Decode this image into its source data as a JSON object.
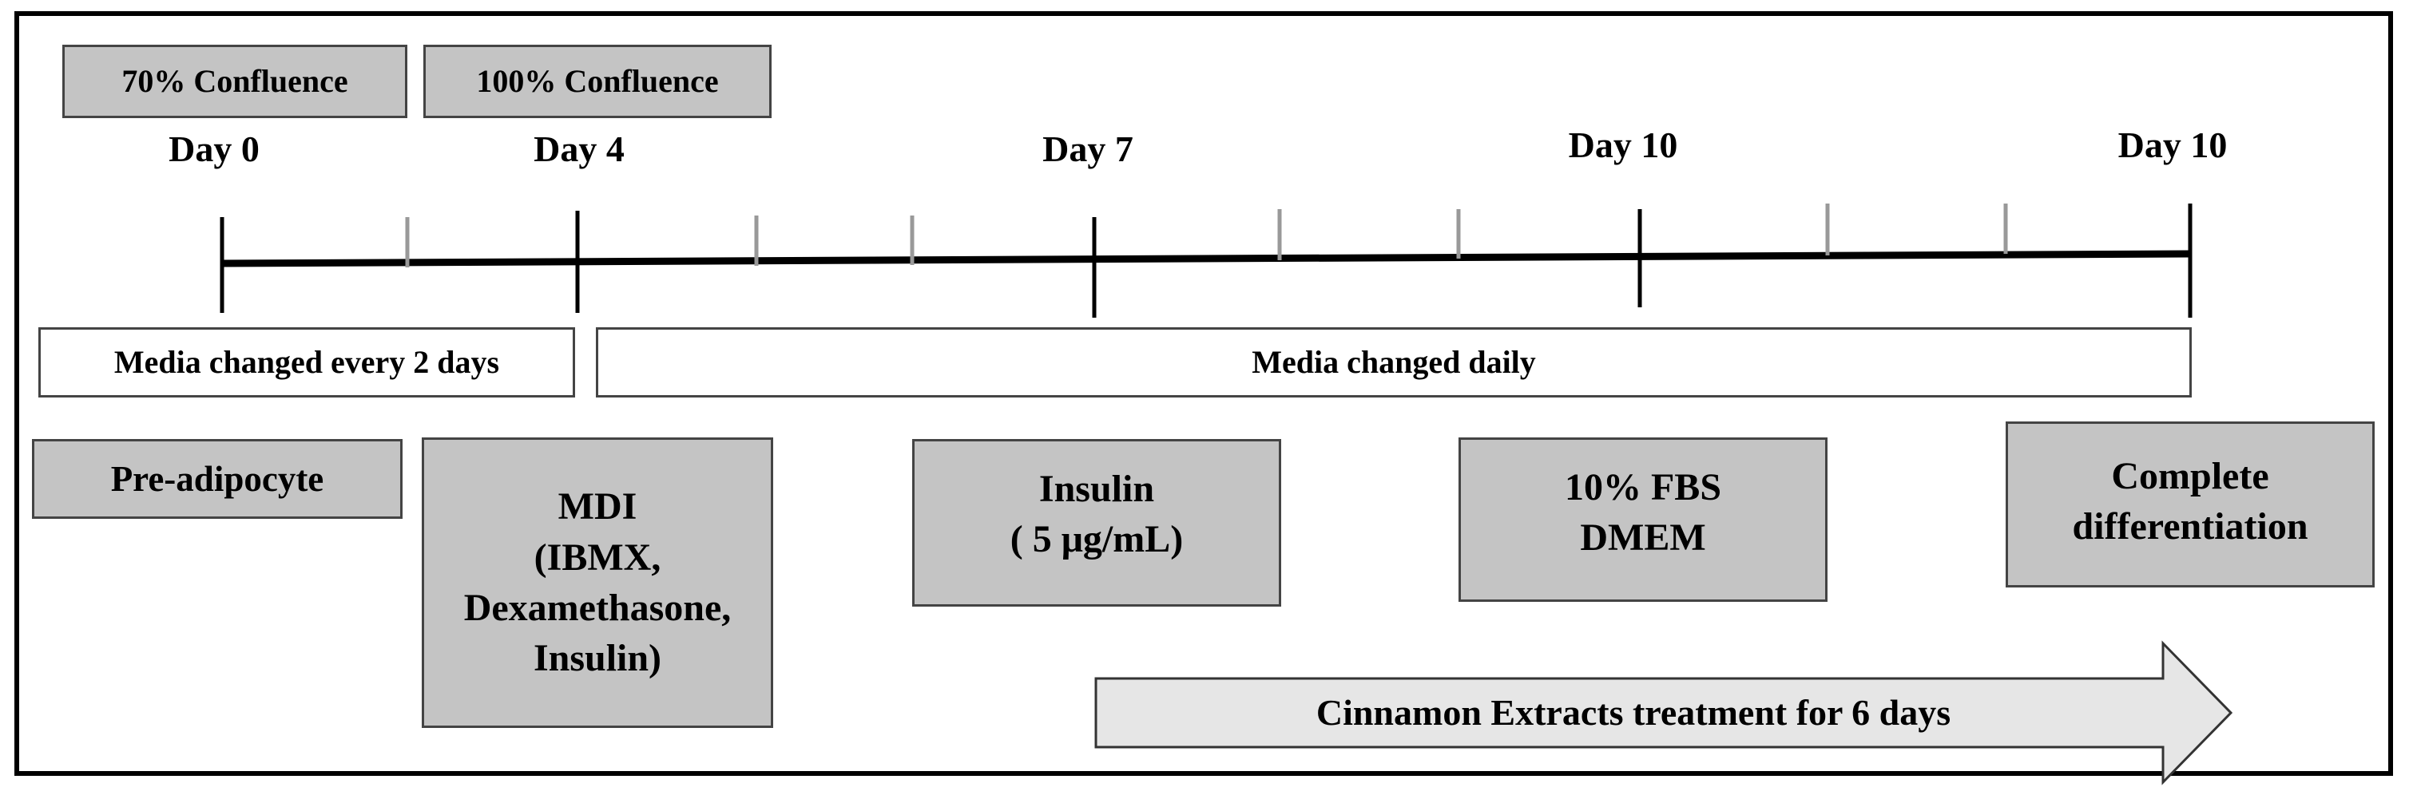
{
  "confluence": {
    "c70": "70% Confluence",
    "c100": "100% Confluence"
  },
  "days": {
    "d0": "Day 0",
    "d4": "Day 4",
    "d7": "Day 7",
    "d10a": "Day 10",
    "d10b": "Day 10"
  },
  "media": {
    "every2": "Media changed every 2 days",
    "daily": "Media changed daily"
  },
  "stages": {
    "preadipocyte": "Pre-adipocyte",
    "mdi": "MDI\n(IBMX,\nDexamethasone,\nInsulin)",
    "insulin": "Insulin\n( 5 μg/mL)",
    "fbs": "10% FBS\nDMEM",
    "complete": "Complete\ndifferentiation"
  },
  "treatment": {
    "label": "Cinnamon Extracts treatment for 6 days"
  },
  "colors": {
    "box_gray": "#c4c4c4",
    "arrow_fill": "#e6e6e6",
    "line": "#000000",
    "minor_tick": "#999999"
  }
}
